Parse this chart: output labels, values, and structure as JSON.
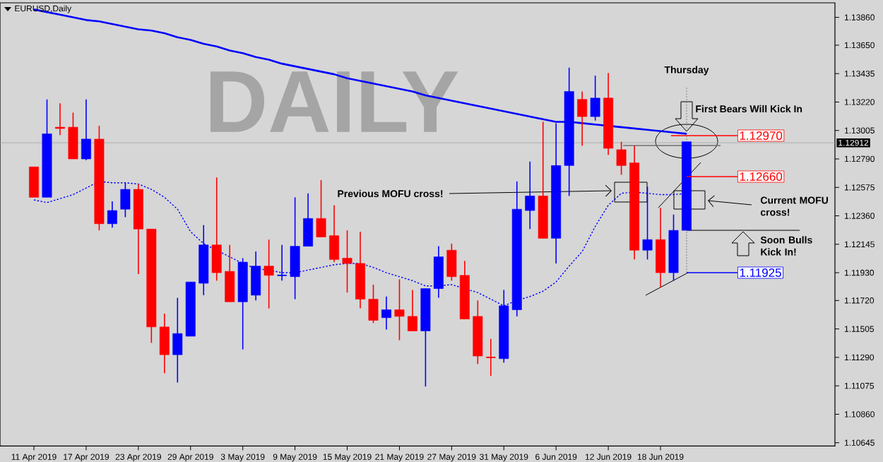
{
  "chart_data": {
    "type": "candlestick",
    "title": "EURUSD,Daily",
    "categories": [
      "11 Apr 2019",
      null,
      null,
      null,
      "17 Apr 2019",
      null,
      null,
      null,
      "23 Apr 2019",
      null,
      null,
      null,
      "29 Apr 2019",
      null,
      null,
      null,
      "3 May 2019",
      null,
      null,
      null,
      "9 May 2019",
      null,
      null,
      null,
      "15 May 2019",
      null,
      null,
      null,
      "21 May 2019",
      null,
      null,
      null,
      "27 May 2019",
      null,
      null,
      null,
      "31 May 2019",
      null,
      null,
      null,
      "6 Jun 2019",
      null,
      null,
      null,
      "12 Jun 2019",
      null,
      null,
      null,
      "18 Jun 2019",
      null,
      null
    ],
    "ohlc": [
      [
        1.1273,
        1.1273,
        1.125,
        1.125
      ],
      [
        1.125,
        1.1324,
        1.125,
        1.1298
      ],
      [
        1.1303,
        1.1321,
        1.1297,
        1.1302
      ],
      [
        1.1303,
        1.1314,
        1.1279,
        1.1279
      ],
      [
        1.1279,
        1.1324,
        1.1278,
        1.1294
      ],
      [
        1.1294,
        1.1304,
        1.1225,
        1.123
      ],
      [
        1.123,
        1.1247,
        1.1227,
        1.124
      ],
      [
        1.1241,
        1.1261,
        1.1235,
        1.1256
      ],
      [
        1.1256,
        1.126,
        1.1192,
        1.1226
      ],
      [
        1.1226,
        1.1226,
        1.114,
        1.1152
      ],
      [
        1.1152,
        1.1162,
        1.1117,
        1.1131
      ],
      [
        1.1131,
        1.1174,
        1.111,
        1.1147
      ],
      [
        1.1145,
        1.1186,
        1.1145,
        1.1186
      ],
      [
        1.1185,
        1.1229,
        1.1176,
        1.1214
      ],
      [
        1.1214,
        1.1265,
        1.1187,
        1.1193
      ],
      [
        1.1194,
        1.1214,
        1.1171,
        1.1171
      ],
      [
        1.1171,
        1.1204,
        1.1135,
        1.1201
      ],
      [
        1.1176,
        1.1209,
        1.1172,
        1.1198
      ],
      [
        1.1198,
        1.1218,
        1.1166,
        1.1191
      ],
      [
        1.1191,
        1.1214,
        1.1187,
        1.1191
      ],
      [
        1.119,
        1.125,
        1.1173,
        1.1213
      ],
      [
        1.1213,
        1.1253,
        1.1213,
        1.1234
      ],
      [
        1.1234,
        1.1263,
        1.122,
        1.122
      ],
      [
        1.1221,
        1.1244,
        1.1201,
        1.1203
      ],
      [
        1.1204,
        1.1225,
        1.1178,
        1.12
      ],
      [
        1.12,
        1.1224,
        1.1166,
        1.1173
      ],
      [
        1.1173,
        1.1184,
        1.1155,
        1.1157
      ],
      [
        1.1159,
        1.1175,
        1.115,
        1.1165
      ],
      [
        1.1165,
        1.1188,
        1.1142,
        1.116
      ],
      [
        1.116,
        1.118,
        1.1149,
        1.1149
      ],
      [
        1.1149,
        1.1181,
        1.1107,
        1.1181
      ],
      [
        1.1181,
        1.1213,
        1.1174,
        1.1205
      ],
      [
        1.121,
        1.1215,
        1.1187,
        1.119
      ],
      [
        1.1191,
        1.1202,
        1.1158,
        1.1158
      ],
      [
        1.116,
        1.1172,
        1.1124,
        1.113
      ],
      [
        1.1129,
        1.1143,
        1.1115,
        1.1129
      ],
      [
        1.1128,
        1.118,
        1.1125,
        1.1168
      ],
      [
        1.1165,
        1.1262,
        1.116,
        1.1241
      ],
      [
        1.124,
        1.1277,
        1.1226,
        1.1251
      ],
      [
        1.1251,
        1.1307,
        1.1219,
        1.1219
      ],
      [
        1.1219,
        1.1306,
        1.12,
        1.1274
      ],
      [
        1.1274,
        1.1348,
        1.1251,
        1.133
      ],
      [
        1.1324,
        1.133,
        1.1289,
        1.1311
      ],
      [
        1.1311,
        1.1342,
        1.1308,
        1.1325
      ],
      [
        1.1325,
        1.1344,
        1.1282,
        1.1287
      ],
      [
        1.1286,
        1.1292,
        1.1267,
        1.1274
      ],
      [
        1.1276,
        1.1289,
        1.1203,
        1.121
      ],
      [
        1.121,
        1.1258,
        1.1203,
        1.1218
      ],
      [
        1.1218,
        1.1242,
        1.1182,
        1.1193
      ],
      [
        1.1193,
        1.1237,
        1.1187,
        1.1225
      ],
      [
        1.1225,
        1.1292,
        1.1225,
        1.1292
      ]
    ],
    "colors": [
      "#ff0000",
      "#0000ff",
      "#ff0000",
      "#ff0000",
      "#0000ff",
      "#ff0000",
      "#0000ff",
      "#0000ff",
      "#ff0000",
      "#ff0000",
      "#ff0000",
      "#0000ff",
      "#0000ff",
      "#0000ff",
      "#ff0000",
      "#ff0000",
      "#0000ff",
      "#0000ff",
      "#ff0000",
      "#0000ff",
      "#0000ff",
      "#0000ff",
      "#ff0000",
      "#ff0000",
      "#ff0000",
      "#ff0000",
      "#ff0000",
      "#0000ff",
      "#ff0000",
      "#ff0000",
      "#0000ff",
      "#0000ff",
      "#ff0000",
      "#ff0000",
      "#ff0000",
      "#ff0000",
      "#0000ff",
      "#0000ff",
      "#0000ff",
      "#ff0000",
      "#0000ff",
      "#0000ff",
      "#ff0000",
      "#0000ff",
      "#ff0000",
      "#ff0000",
      "#ff0000",
      "#0000ff",
      "#ff0000",
      "#0000ff",
      "#0000ff"
    ],
    "series": [
      {
        "type": "line",
        "color": "#0000ff",
        "line_style": "solid",
        "values": [
          1.1392,
          1.139,
          1.1388,
          1.1386,
          1.1384,
          1.1383,
          1.1381,
          1.1379,
          1.1377,
          1.1376,
          1.1374,
          1.1371,
          1.1369,
          1.1366,
          1.1364,
          1.1361,
          1.1359,
          1.1356,
          1.1354,
          1.1351,
          1.1349,
          1.1347,
          1.1345,
          1.1343,
          1.134,
          1.1338,
          1.1336,
          1.1334,
          1.1332,
          1.133,
          1.1327,
          1.1325,
          1.1323,
          1.1321,
          1.1319,
          1.1317,
          1.1315,
          1.1313,
          1.1311,
          1.1309,
          1.1307,
          1.1307,
          1.1306,
          1.1305,
          1.1304,
          1.1303,
          1.1302,
          1.1301,
          1.13,
          1.1299,
          1.1298
        ]
      },
      {
        "type": "line",
        "color": "#0000ff",
        "line_style": "dotted",
        "values": [
          1.1248,
          1.1246,
          1.1249,
          1.1252,
          1.1257,
          1.1262,
          1.1261,
          1.1261,
          1.126,
          1.1256,
          1.125,
          1.1241,
          1.1224,
          1.1215,
          1.121,
          1.1205,
          1.12,
          1.1196,
          1.1195,
          1.1193,
          1.1193,
          1.1195,
          1.1197,
          1.1199,
          1.12,
          1.12,
          1.1197,
          1.1193,
          1.119,
          1.1187,
          1.1183,
          1.1183,
          1.1184,
          1.1181,
          1.1178,
          1.1173,
          1.1168,
          1.1172,
          1.1175,
          1.1179,
          1.1186,
          1.1198,
          1.1209,
          1.1228,
          1.1244,
          1.1253,
          1.1254,
          1.1253,
          1.1252,
          1.1252,
          1.1253
        ]
      }
    ],
    "ylim": [
      1.1062,
      1.1397
    ],
    "yticks": [
      {
        "value": 1.1386,
        "label": "1.13860"
      },
      {
        "value": 1.1365,
        "label": "1.13650"
      },
      {
        "value": 1.13435,
        "label": "1.13435"
      },
      {
        "value": 1.1322,
        "label": "1.13220"
      },
      {
        "value": 1.13005,
        "label": "1.13005"
      },
      {
        "value": 1.1279,
        "label": "1.12790"
      },
      {
        "value": 1.12575,
        "label": "1.12575"
      },
      {
        "value": 1.1236,
        "label": "1.12360"
      },
      {
        "value": 1.12145,
        "label": "1.12145"
      },
      {
        "value": 1.1193,
        "label": "1.11930"
      },
      {
        "value": 1.1172,
        "label": "1.11720"
      },
      {
        "value": 1.11505,
        "label": "1.11505"
      },
      {
        "value": 1.1129,
        "label": "1.11290"
      },
      {
        "value": 1.11075,
        "label": "1.11075"
      },
      {
        "value": 1.1086,
        "label": "1.10860"
      },
      {
        "value": 1.10645,
        "label": "1.10645"
      }
    ],
    "ref_lines": [
      {
        "axis": "y",
        "value": 1.12912,
        "label": "1.12912",
        "color": "#a8a8a8"
      }
    ],
    "annotations": [
      "DAILY",
      "Thursday",
      "First Bears Will Kick In",
      "Previous MOFU cross!",
      "Current MOFU cross!",
      "Soon Bulls Kick In!",
      "1.12970",
      "1.12660",
      "1.11925"
    ]
  }
}
